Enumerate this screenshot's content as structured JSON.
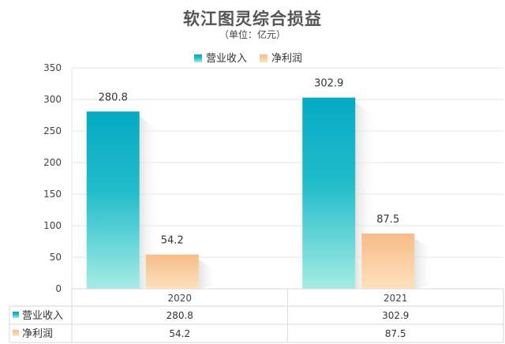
{
  "chart_data": {
    "type": "bar",
    "title": "软江图灵综合损益",
    "subtitle": "（单位：亿元）",
    "categories": [
      "2020",
      "2021"
    ],
    "series": [
      {
        "name": "营业收入",
        "values": [
          280.8,
          302.9
        ],
        "value_labels": [
          "280.8",
          "302.9"
        ],
        "color": "#0fb1c8"
      },
      {
        "name": "净利润",
        "values": [
          54.2,
          87.5
        ],
        "value_labels": [
          "54.2",
          "87.5"
        ],
        "color": "#f8c08e"
      }
    ],
    "ylim": [
      0,
      350
    ],
    "yticks": [
      0,
      50,
      100,
      150,
      200,
      250,
      300,
      350
    ],
    "ytick_labels": [
      "0",
      "50",
      "100",
      "150",
      "200",
      "250",
      "300",
      "350"
    ],
    "grid": true,
    "legend_position": "top-center",
    "data_table": true
  }
}
